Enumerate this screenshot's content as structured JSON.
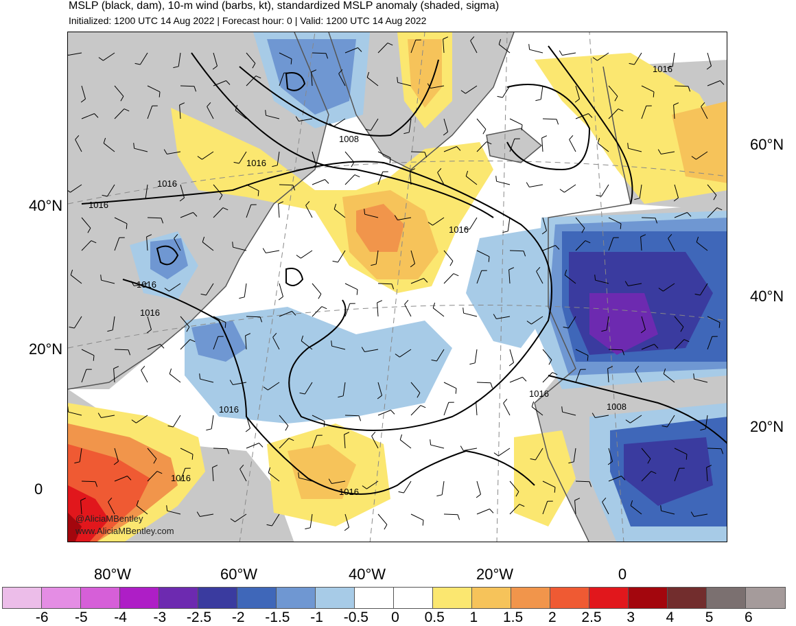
{
  "header": {
    "title": "MSLP (black, dam), 10-m wind (barbs, kt), standardized MSLP anomaly (shaded, sigma)",
    "subtitle": "Initialized: 1200 UTC 14 Aug 2022 | Forecast hour: 0 | Valid: 1200 UTC 14 Aug 2022"
  },
  "axes": {
    "lat_left": [
      "40°N",
      "20°N",
      "0"
    ],
    "lat_right": [
      "60°N",
      "40°N",
      "20°N"
    ],
    "lon_bottom": [
      "80°W",
      "60°W",
      "40°W",
      "20°W",
      "0"
    ]
  },
  "contour_labels": [
    "1008",
    "1016",
    "1016",
    "1016",
    "1016",
    "1016",
    "1016",
    "1016",
    "1016",
    "1016",
    "1016",
    "1016",
    "1008"
  ],
  "watermark": {
    "handle": "@AliciaMBentley",
    "url": "www.AliciaMBentley.com"
  },
  "colorbar": {
    "ticks": [
      "-6",
      "-5",
      "-4",
      "-3",
      "-2.5",
      "-2",
      "-1.5",
      "-1",
      "-0.5",
      "0",
      "0.5",
      "1",
      "1.5",
      "2",
      "2.5",
      "3",
      "4",
      "5",
      "6"
    ],
    "colors": [
      "#ecbde9",
      "#e48de4",
      "#d65fd8",
      "#ae1ec6",
      "#6d2ab0",
      "#3a3b9f",
      "#3f67b9",
      "#6f97d2",
      "#a7cbe7",
      "#ffffff",
      "#ffffff",
      "#fbe770",
      "#f6c35a",
      "#f1954b",
      "#ef5a33",
      "#e1171c",
      "#a3060d",
      "#722d2d",
      "#7b7070",
      "#a59b9b"
    ]
  },
  "style": {
    "land_gray": "#c8c8c8",
    "coast_color": "#555555"
  }
}
